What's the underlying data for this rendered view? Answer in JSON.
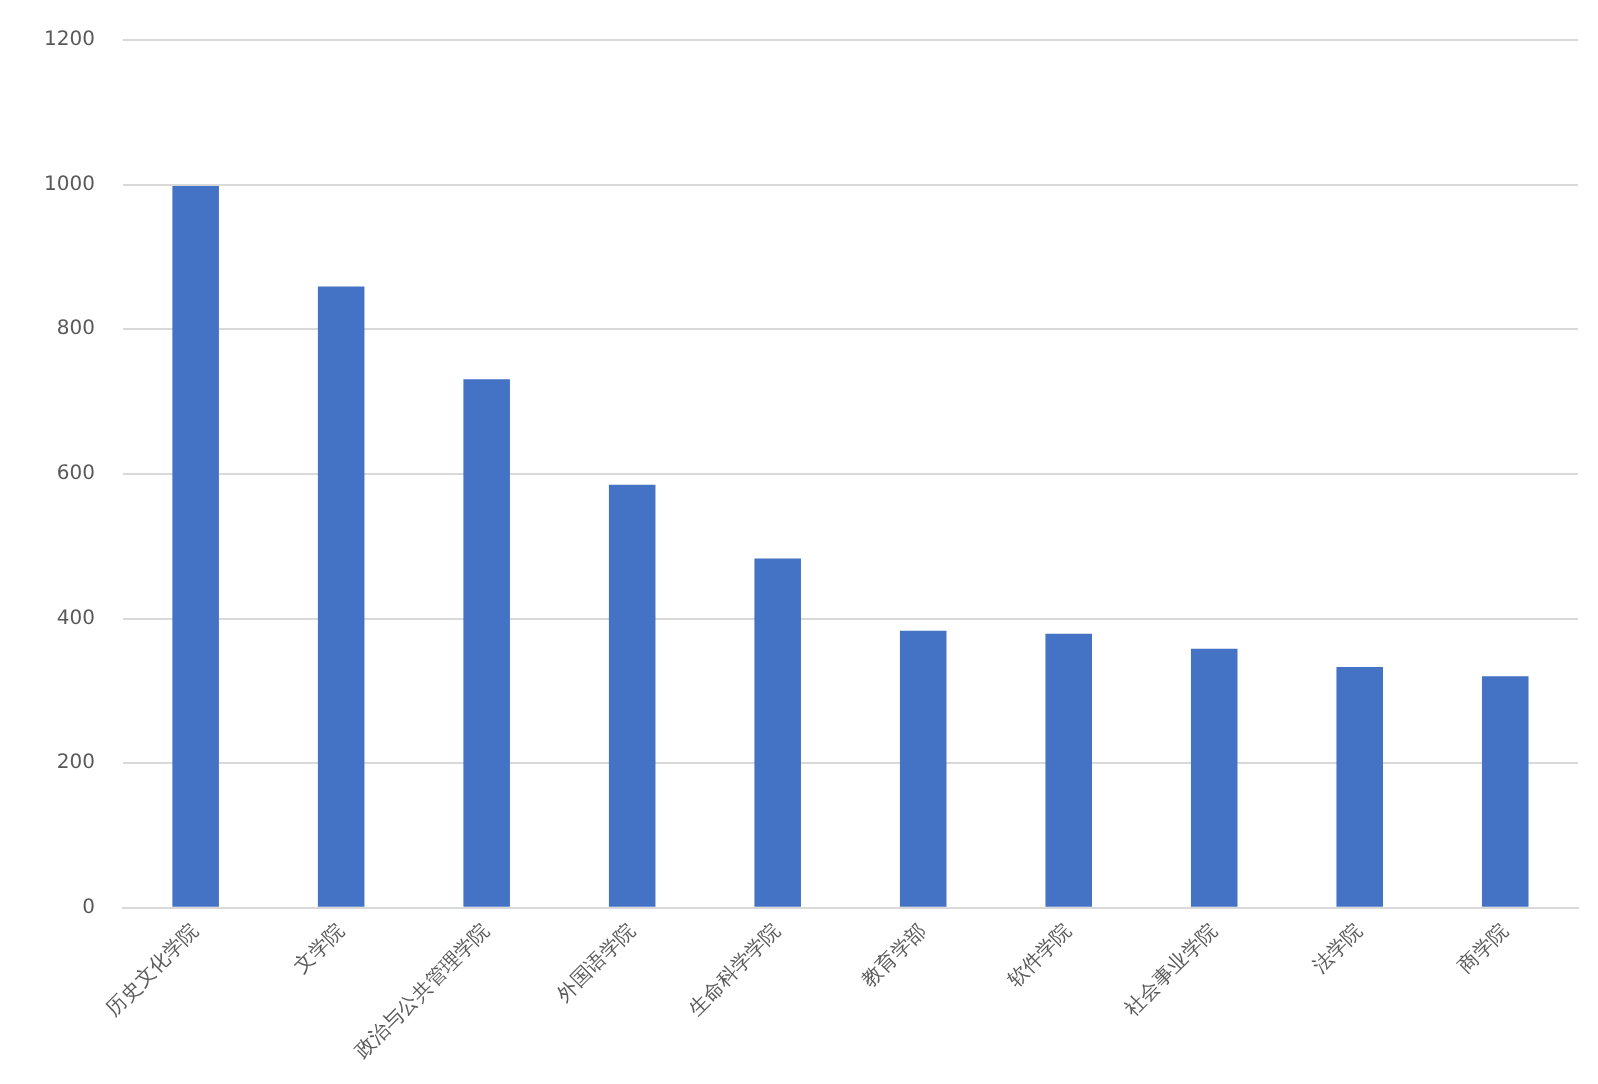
{
  "chart_data": {
    "type": "bar",
    "categories": [
      "历史文化学院",
      "文学院",
      "政治与公共管理学院",
      "外国语学院",
      "生命科学学院",
      "教育学部",
      "软件学院",
      "社会事业学院",
      "法学院",
      "商学院"
    ],
    "values": [
      998,
      859,
      731,
      585,
      483,
      383,
      379,
      358,
      333,
      320
    ],
    "color": "#4472c4",
    "ylim": [
      0,
      1200
    ],
    "yticks": [
      0,
      200,
      400,
      600,
      800,
      1000,
      1200
    ],
    "grid": "y",
    "legend": false
  }
}
